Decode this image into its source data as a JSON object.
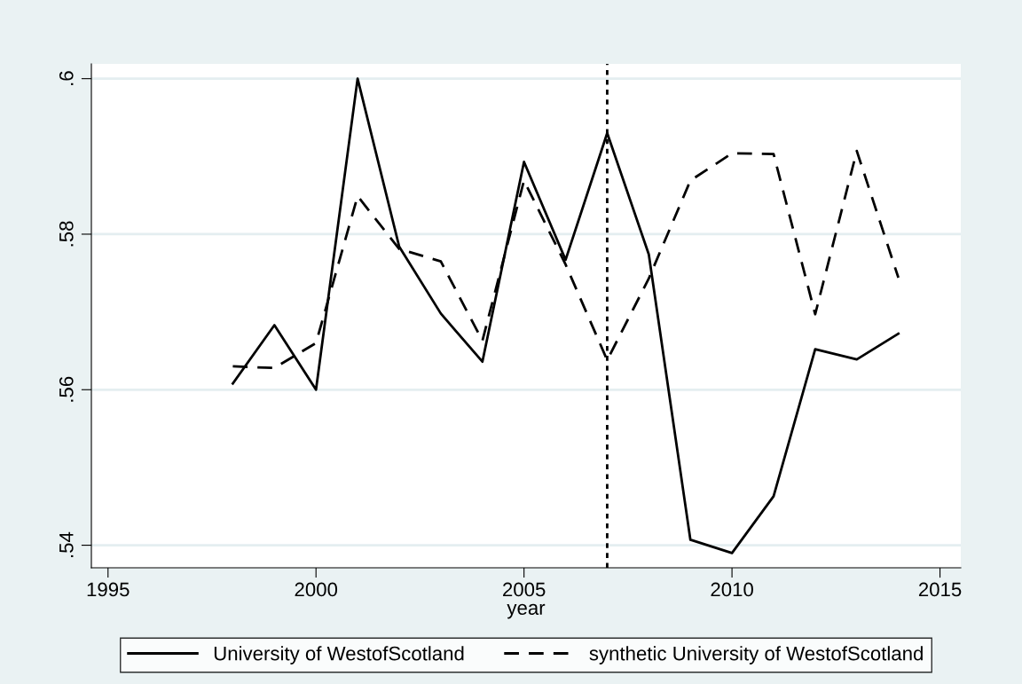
{
  "chart_data": {
    "type": "line",
    "xlabel": "year",
    "x": [
      1998,
      1999,
      2000,
      2001,
      2002,
      2003,
      2004,
      2005,
      2006,
      2007,
      2008,
      2009,
      2010,
      2011,
      2012,
      2013,
      2014
    ],
    "series": [
      {
        "name": "University of WestofScotland",
        "color": "#000000",
        "line_style": "solid",
        "values": [
          0.5608,
          0.5683,
          0.56,
          0.6,
          0.5784,
          0.5698,
          0.5636,
          0.5893,
          0.5767,
          0.593,
          0.5774,
          0.5407,
          0.539,
          0.5463,
          0.5652,
          0.5639,
          0.5672
        ]
      },
      {
        "name": "synthetic University of WestofScotland",
        "color": "#000000",
        "line_style": "dashed",
        "values": [
          0.563,
          0.5628,
          0.566,
          0.5849,
          0.5781,
          0.5765,
          0.5663,
          0.5869,
          0.5761,
          0.5638,
          0.5743,
          0.5869,
          0.5904,
          0.5903,
          0.5697,
          0.5907,
          0.5744
        ]
      }
    ],
    "xlim": [
      1994.6,
      2015.5
    ],
    "xticks": [
      1995,
      2000,
      2005,
      2010,
      2015
    ],
    "ylim": [
      0.5371,
      0.6019
    ],
    "yticks": [
      {
        "value": 0.54,
        "label": ".54"
      },
      {
        "value": 0.56,
        "label": ".56"
      },
      {
        "value": 0.58,
        "label": ".58"
      },
      {
        "value": 0.6,
        "label": ".6"
      }
    ],
    "ref_lines": [
      {
        "axis": "x",
        "value": 2007,
        "color": "#000000",
        "line_style": "dotted"
      }
    ],
    "grid": "y",
    "legend": "bottom"
  }
}
